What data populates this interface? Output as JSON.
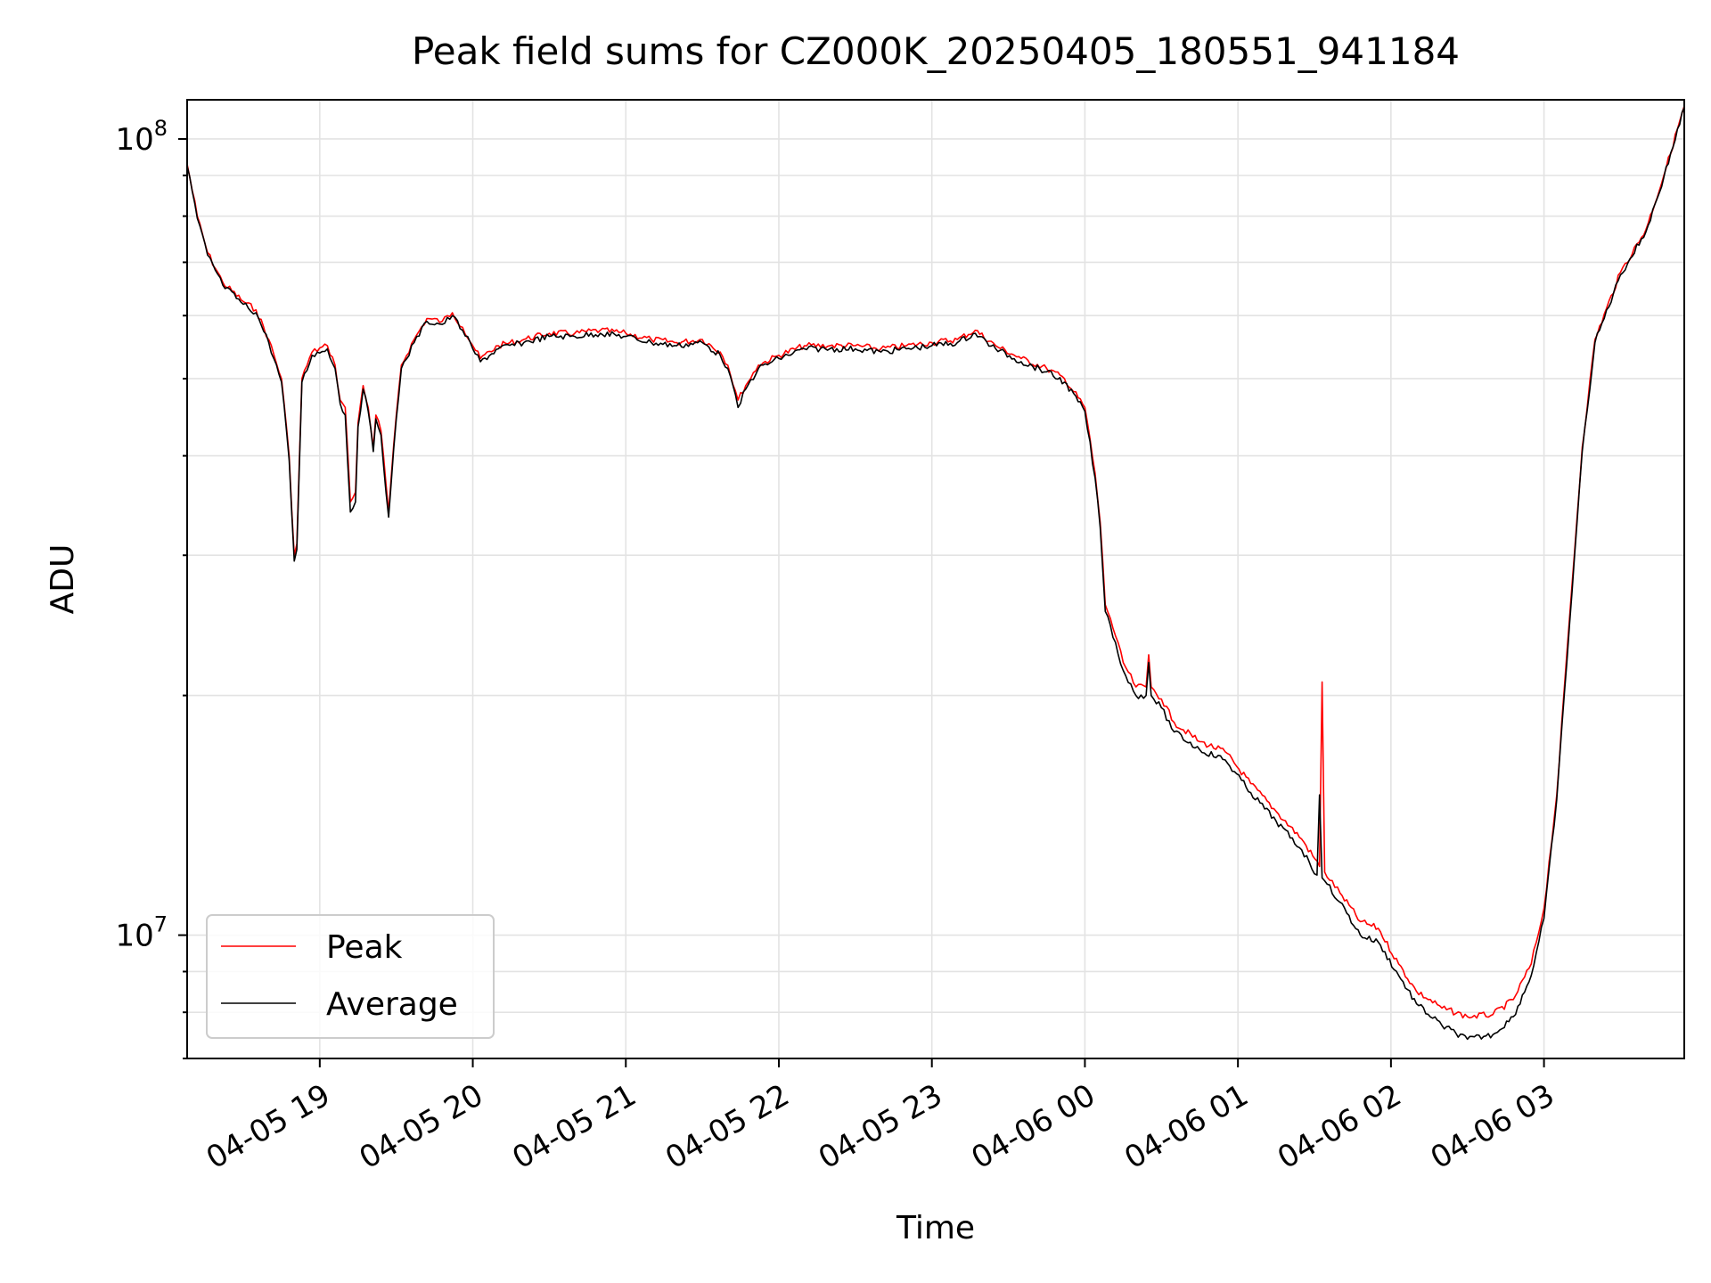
{
  "chart_data": {
    "type": "line",
    "title": "Peak field sums for CZ000K_20250405_180551_941184",
    "xlabel": "Time",
    "ylabel": "ADU",
    "y_scale": "log",
    "ylim": [
      7000000,
      112000000
    ],
    "xlim": [
      "2025-04-05 18:08",
      "2025-04-06 03:55"
    ],
    "grid": true,
    "legend_position": "lower-left",
    "x_ticks": [
      {
        "t": "2025-04-05 19:00",
        "label": "04-05 19"
      },
      {
        "t": "2025-04-05 20:00",
        "label": "04-05 20"
      },
      {
        "t": "2025-04-05 21:00",
        "label": "04-05 21"
      },
      {
        "t": "2025-04-05 22:00",
        "label": "04-05 22"
      },
      {
        "t": "2025-04-05 23:00",
        "label": "04-05 23"
      },
      {
        "t": "2025-04-06 00:00",
        "label": "04-06 00"
      },
      {
        "t": "2025-04-06 01:00",
        "label": "04-06 01"
      },
      {
        "t": "2025-04-06 02:00",
        "label": "04-06 02"
      },
      {
        "t": "2025-04-06 03:00",
        "label": "04-06 03"
      }
    ],
    "y_ticks": [
      {
        "value": 10000000,
        "base": "10",
        "exp": "7"
      },
      {
        "value": 100000000,
        "base": "10",
        "exp": "8"
      }
    ],
    "series": [
      {
        "name": "Peak",
        "color": "#ff0000",
        "points": [
          [
            "2025-04-05 18:08",
            93000000
          ],
          [
            "2025-04-05 18:12",
            80000000
          ],
          [
            "2025-04-05 18:16",
            72000000
          ],
          [
            "2025-04-05 18:22",
            66000000
          ],
          [
            "2025-04-05 18:30",
            62500000
          ],
          [
            "2025-04-05 18:35",
            61000000
          ],
          [
            "2025-04-05 18:40",
            56000000
          ],
          [
            "2025-04-05 18:45",
            50000000
          ],
          [
            "2025-04-05 18:48",
            40000000
          ],
          [
            "2025-04-05 18:50",
            30000000
          ],
          [
            "2025-04-05 18:51",
            31000000
          ],
          [
            "2025-04-05 18:53",
            50000000
          ],
          [
            "2025-04-05 18:57",
            54000000
          ],
          [
            "2025-04-05 19:03",
            55000000
          ],
          [
            "2025-04-05 19:06",
            52000000
          ],
          [
            "2025-04-05 19:08",
            47000000
          ],
          [
            "2025-04-05 19:10",
            46000000
          ],
          [
            "2025-04-05 19:12",
            35000000
          ],
          [
            "2025-04-05 19:14",
            36000000
          ],
          [
            "2025-04-05 19:15",
            44000000
          ],
          [
            "2025-04-05 19:17",
            49000000
          ],
          [
            "2025-04-05 19:19",
            46000000
          ],
          [
            "2025-04-05 19:21",
            41000000
          ],
          [
            "2025-04-05 19:22",
            45000000
          ],
          [
            "2025-04-05 19:24",
            43000000
          ],
          [
            "2025-04-05 19:27",
            34000000
          ],
          [
            "2025-04-05 19:30",
            45000000
          ],
          [
            "2025-04-05 19:32",
            52000000
          ],
          [
            "2025-04-05 19:37",
            56000000
          ],
          [
            "2025-04-05 19:42",
            59500000
          ],
          [
            "2025-04-05 19:48",
            59000000
          ],
          [
            "2025-04-05 19:52",
            60500000
          ],
          [
            "2025-04-05 19:56",
            58000000
          ],
          [
            "2025-04-05 20:00",
            55000000
          ],
          [
            "2025-04-05 20:03",
            53000000
          ],
          [
            "2025-04-05 20:10",
            55000000
          ],
          [
            "2025-04-05 20:20",
            56000000
          ],
          [
            "2025-04-05 20:30",
            57000000
          ],
          [
            "2025-04-05 20:40",
            57000000
          ],
          [
            "2025-04-05 20:50",
            57500000
          ],
          [
            "2025-04-05 21:00",
            57000000
          ],
          [
            "2025-04-05 21:10",
            56000000
          ],
          [
            "2025-04-05 21:20",
            55500000
          ],
          [
            "2025-04-05 21:30",
            56000000
          ],
          [
            "2025-04-05 21:37",
            54000000
          ],
          [
            "2025-04-05 21:40",
            52000000
          ],
          [
            "2025-04-05 21:44",
            47000000
          ],
          [
            "2025-04-05 21:47",
            49000000
          ],
          [
            "2025-04-05 21:52",
            52000000
          ],
          [
            "2025-04-05 22:00",
            53500000
          ],
          [
            "2025-04-05 22:10",
            55000000
          ],
          [
            "2025-04-05 22:20",
            55000000
          ],
          [
            "2025-04-05 22:30",
            55000000
          ],
          [
            "2025-04-05 22:40",
            54500000
          ],
          [
            "2025-04-05 22:50",
            55000000
          ],
          [
            "2025-04-05 23:00",
            55500000
          ],
          [
            "2025-04-05 23:10",
            56000000
          ],
          [
            "2025-04-05 23:17",
            57500000
          ],
          [
            "2025-04-05 23:25",
            55000000
          ],
          [
            "2025-04-05 23:35",
            53000000
          ],
          [
            "2025-04-05 23:45",
            51500000
          ],
          [
            "2025-04-05 23:52",
            50000000
          ],
          [
            "2025-04-06 00:00",
            46000000
          ],
          [
            "2025-04-06 00:04",
            38000000
          ],
          [
            "2025-04-06 00:06",
            33000000
          ],
          [
            "2025-04-06 00:08",
            26000000
          ],
          [
            "2025-04-06 00:10",
            25000000
          ],
          [
            "2025-04-06 00:15",
            22000000
          ],
          [
            "2025-04-06 00:20",
            20500000
          ],
          [
            "2025-04-06 00:24",
            20500000
          ],
          [
            "2025-04-06 00:25",
            22500000
          ],
          [
            "2025-04-06 00:26",
            20500000
          ],
          [
            "2025-04-06 00:30",
            19800000
          ],
          [
            "2025-04-06 00:35",
            18500000
          ],
          [
            "2025-04-06 00:45",
            17500000
          ],
          [
            "2025-04-06 00:55",
            17000000
          ],
          [
            "2025-04-06 01:05",
            15500000
          ],
          [
            "2025-04-06 01:15",
            14300000
          ],
          [
            "2025-04-06 01:25",
            13200000
          ],
          [
            "2025-04-06 01:32",
            12200000
          ],
          [
            "2025-04-06 01:33",
            20800000
          ],
          [
            "2025-04-06 01:34",
            12000000
          ],
          [
            "2025-04-06 01:40",
            11300000
          ],
          [
            "2025-04-06 01:48",
            10400000
          ],
          [
            "2025-04-06 01:55",
            10200000
          ],
          [
            "2025-04-06 02:03",
            9200000
          ],
          [
            "2025-04-06 02:10",
            8500000
          ],
          [
            "2025-04-06 02:20",
            8100000
          ],
          [
            "2025-04-06 02:30",
            7900000
          ],
          [
            "2025-04-06 02:40",
            7950000
          ],
          [
            "2025-04-06 02:48",
            8300000
          ],
          [
            "2025-04-06 02:55",
            9200000
          ],
          [
            "2025-04-06 03:00",
            10800000
          ],
          [
            "2025-04-06 03:05",
            15000000
          ],
          [
            "2025-04-06 03:10",
            25000000
          ],
          [
            "2025-04-06 03:15",
            41000000
          ],
          [
            "2025-04-06 03:20",
            56000000
          ],
          [
            "2025-04-06 03:30",
            68000000
          ],
          [
            "2025-04-06 03:40",
            77000000
          ],
          [
            "2025-04-06 03:47",
            90000000
          ],
          [
            "2025-04-06 03:55",
            110000000
          ]
        ]
      },
      {
        "name": "Average",
        "color": "#000000",
        "points": [
          [
            "2025-04-05 18:08",
            92500000
          ],
          [
            "2025-04-05 18:12",
            79500000
          ],
          [
            "2025-04-05 18:16",
            71500000
          ],
          [
            "2025-04-05 18:22",
            65500000
          ],
          [
            "2025-04-05 18:30",
            62000000
          ],
          [
            "2025-04-05 18:35",
            60500000
          ],
          [
            "2025-04-05 18:40",
            55500000
          ],
          [
            "2025-04-05 18:45",
            49500000
          ],
          [
            "2025-04-05 18:48",
            39500000
          ],
          [
            "2025-04-05 18:50",
            29500000
          ],
          [
            "2025-04-05 18:51",
            30500000
          ],
          [
            "2025-04-05 18:53",
            49500000
          ],
          [
            "2025-04-05 18:57",
            53500000
          ],
          [
            "2025-04-05 19:03",
            54500000
          ],
          [
            "2025-04-05 19:06",
            51500000
          ],
          [
            "2025-04-05 19:08",
            46500000
          ],
          [
            "2025-04-05 19:10",
            45000000
          ],
          [
            "2025-04-05 19:12",
            34000000
          ],
          [
            "2025-04-05 19:14",
            35000000
          ],
          [
            "2025-04-05 19:15",
            43500000
          ],
          [
            "2025-04-05 19:17",
            48500000
          ],
          [
            "2025-04-05 19:19",
            45500000
          ],
          [
            "2025-04-05 19:21",
            40500000
          ],
          [
            "2025-04-05 19:22",
            44500000
          ],
          [
            "2025-04-05 19:24",
            42500000
          ],
          [
            "2025-04-05 19:27",
            33500000
          ],
          [
            "2025-04-05 19:30",
            44500000
          ],
          [
            "2025-04-05 19:32",
            51500000
          ],
          [
            "2025-04-05 19:37",
            55500000
          ],
          [
            "2025-04-05 19:42",
            59000000
          ],
          [
            "2025-04-05 19:48",
            58500000
          ],
          [
            "2025-04-05 19:52",
            60000000
          ],
          [
            "2025-04-05 19:56",
            57500000
          ],
          [
            "2025-04-05 20:00",
            54500000
          ],
          [
            "2025-04-05 20:03",
            52500000
          ],
          [
            "2025-04-05 20:10",
            54500000
          ],
          [
            "2025-04-05 20:20",
            55500000
          ],
          [
            "2025-04-05 20:30",
            56500000
          ],
          [
            "2025-04-05 20:40",
            56500000
          ],
          [
            "2025-04-05 20:50",
            57000000
          ],
          [
            "2025-04-05 21:00",
            56500000
          ],
          [
            "2025-04-05 21:10",
            55500000
          ],
          [
            "2025-04-05 21:20",
            55000000
          ],
          [
            "2025-04-05 21:30",
            55500000
          ],
          [
            "2025-04-05 21:37",
            53500000
          ],
          [
            "2025-04-05 21:40",
            51500000
          ],
          [
            "2025-04-05 21:44",
            46000000
          ],
          [
            "2025-04-05 21:47",
            48500000
          ],
          [
            "2025-04-05 21:52",
            51500000
          ],
          [
            "2025-04-05 22:00",
            53000000
          ],
          [
            "2025-04-05 22:10",
            54500000
          ],
          [
            "2025-04-05 22:20",
            54500000
          ],
          [
            "2025-04-05 22:30",
            54500000
          ],
          [
            "2025-04-05 22:40",
            54000000
          ],
          [
            "2025-04-05 22:50",
            54500000
          ],
          [
            "2025-04-05 23:00",
            55000000
          ],
          [
            "2025-04-05 23:10",
            55500000
          ],
          [
            "2025-04-05 23:17",
            57000000
          ],
          [
            "2025-04-05 23:25",
            54500000
          ],
          [
            "2025-04-05 23:35",
            52500000
          ],
          [
            "2025-04-05 23:45",
            51000000
          ],
          [
            "2025-04-05 23:52",
            49500000
          ],
          [
            "2025-04-06 00:00",
            45500000
          ],
          [
            "2025-04-06 00:04",
            37500000
          ],
          [
            "2025-04-06 00:06",
            32500000
          ],
          [
            "2025-04-06 00:08",
            25500000
          ],
          [
            "2025-04-06 00:10",
            24500000
          ],
          [
            "2025-04-06 00:15",
            21500000
          ],
          [
            "2025-04-06 00:20",
            20000000
          ],
          [
            "2025-04-06 00:24",
            20000000
          ],
          [
            "2025-04-06 00:25",
            22000000
          ],
          [
            "2025-04-06 00:26",
            20000000
          ],
          [
            "2025-04-06 00:30",
            19300000
          ],
          [
            "2025-04-06 00:35",
            18000000
          ],
          [
            "2025-04-06 00:45",
            17100000
          ],
          [
            "2025-04-06 00:55",
            16600000
          ],
          [
            "2025-04-06 01:05",
            15100000
          ],
          [
            "2025-04-06 01:15",
            13900000
          ],
          [
            "2025-04-06 01:25",
            12800000
          ],
          [
            "2025-04-06 01:31",
            11900000
          ],
          [
            "2025-04-06 01:32",
            15000000
          ],
          [
            "2025-04-06 01:33",
            11800000
          ],
          [
            "2025-04-06 01:34",
            11700000
          ],
          [
            "2025-04-06 01:40",
            11000000
          ],
          [
            "2025-04-06 01:48",
            10000000
          ],
          [
            "2025-04-06 01:55",
            9800000
          ],
          [
            "2025-04-06 02:03",
            8900000
          ],
          [
            "2025-04-06 02:10",
            8200000
          ],
          [
            "2025-04-06 02:20",
            7700000
          ],
          [
            "2025-04-06 02:30",
            7400000
          ],
          [
            "2025-04-06 02:40",
            7500000
          ],
          [
            "2025-04-06 02:48",
            7900000
          ],
          [
            "2025-04-06 02:55",
            8900000
          ],
          [
            "2025-04-06 03:00",
            10500000
          ],
          [
            "2025-04-06 03:05",
            14800000
          ],
          [
            "2025-04-06 03:10",
            24500000
          ],
          [
            "2025-04-06 03:15",
            40500000
          ],
          [
            "2025-04-06 03:20",
            55500000
          ],
          [
            "2025-04-06 03:30",
            67500000
          ],
          [
            "2025-04-06 03:40",
            76500000
          ],
          [
            "2025-04-06 03:47",
            89500000
          ],
          [
            "2025-04-06 03:55",
            109500000
          ]
        ]
      }
    ]
  }
}
